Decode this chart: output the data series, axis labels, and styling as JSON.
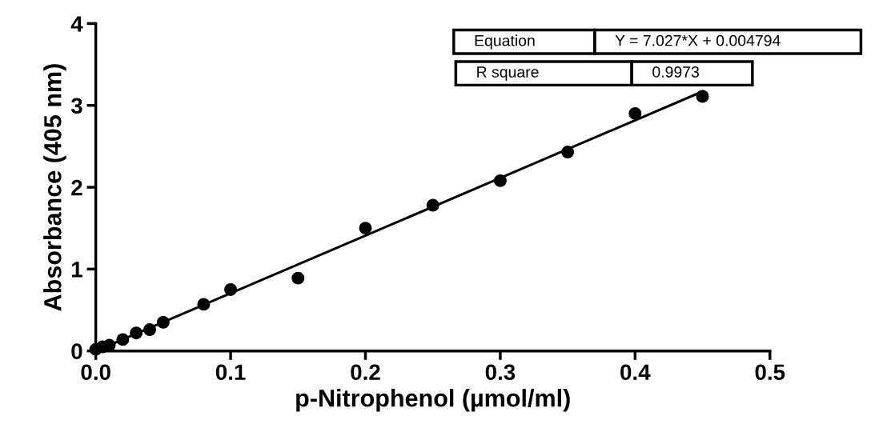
{
  "chart_data": {
    "type": "scatter",
    "xlabel": "p-Nitrophenol (µmol/ml)",
    "ylabel": "Absorbance (405 nm)",
    "xlim": [
      0,
      0.5
    ],
    "xticks": [
      {
        "value": 0,
        "label": "0.0"
      },
      0.1,
      0.2,
      0.3,
      0.4,
      0.5
    ],
    "ylim": [
      0,
      4
    ],
    "yticks": [
      0,
      1,
      2,
      3,
      4
    ],
    "grid": false,
    "annotations": [
      "Equation",
      "Y = 7.027*X + 0.004794",
      "R square",
      "0.9973"
    ],
    "series": [
      {
        "color": "#000000",
        "marker": "circle",
        "x": [
          0,
          0.005,
          0.01,
          0.02,
          0.03,
          0.04,
          0.05,
          0.08,
          0.1,
          0.15,
          0.2,
          0.25,
          0.3,
          0.35,
          0.4,
          0.45
        ],
        "values": [
          0.02,
          0.05,
          0.07,
          0.14,
          0.22,
          0.26,
          0.35,
          0.57,
          0.75,
          0.89,
          1.5,
          1.78,
          2.08,
          2.43,
          2.9,
          3.11
        ]
      },
      {
        "type": "line",
        "color": "#000000",
        "line_style": "solid",
        "x": [
          0,
          0.45
        ],
        "values": [
          0,
          3.17
        ]
      }
    ]
  }
}
